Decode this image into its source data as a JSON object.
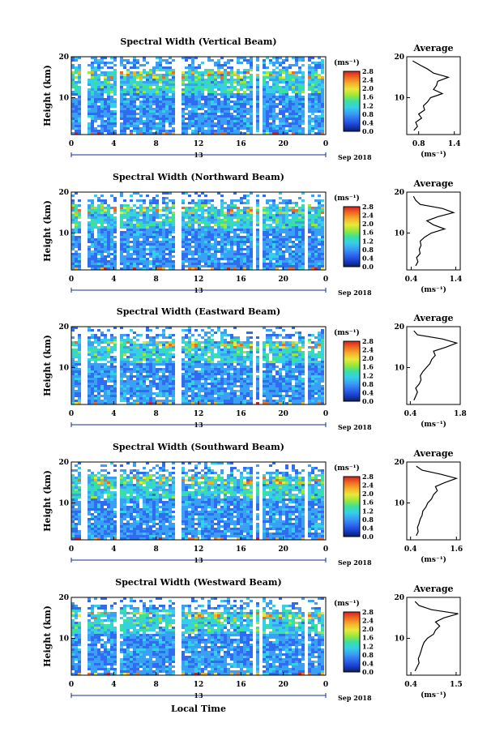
{
  "chart_data": {
    "type": "heatmap",
    "common": {
      "heatmap_ylabel": "Height (km)",
      "x_ticks": [
        "0",
        "4",
        "8",
        "12",
        "16",
        "20",
        "0"
      ],
      "x_tick_values": [
        0,
        4,
        8,
        12,
        16,
        20,
        24
      ],
      "xlim": [
        0,
        24
      ],
      "day_label": "13",
      "date_label": "Sep 2018",
      "y_ticks": [
        "20",
        "10"
      ],
      "y_tick_values": [
        20,
        10
      ],
      "ylim": [
        1,
        20
      ],
      "xlabel": "Local Time",
      "colorbar_unit": "(ms⁻¹)",
      "colorbar_ticks": [
        "2.8",
        "2.4",
        "2.0",
        "1.6",
        "1.2",
        "0.8",
        "0.4",
        "0.0"
      ],
      "colorbar_range": [
        0,
        2.8
      ],
      "colorbar_colors": [
        "#0a1f5e",
        "#1a3fd0",
        "#2f6cf0",
        "#3aa0f5",
        "#35d0e8",
        "#3ae0a0",
        "#9ae83a",
        "#e8e83a",
        "#f5b02a",
        "#f06a20",
        "#d82020"
      ],
      "profile_title": "Average",
      "profile_xlabel": "(ms⁻¹)",
      "profile_y_ticks": [
        "20",
        "10"
      ]
    },
    "panels": [
      {
        "title": "Spectral Width (Vertical Beam)",
        "gap_hours": [
          [
            1.0,
            1.5
          ],
          [
            4.2,
            4.6
          ],
          [
            9.7,
            10.4
          ],
          [
            17.2,
            17.4
          ],
          [
            17.9,
            18.2
          ],
          [
            22.2,
            22.5
          ]
        ],
        "profile_xlim": [
          0.6,
          1.5
        ],
        "profile_x_ticks": [
          "0.8",
          "1.4"
        ],
        "profile_x_tick_values": [
          0.8,
          1.4
        ],
        "profile": {
          "height": [
            2,
            3,
            4,
            5,
            6,
            7,
            8,
            9,
            10,
            11,
            12,
            13,
            14,
            15,
            16,
            17,
            18,
            19
          ],
          "value": [
            0.72,
            0.78,
            0.75,
            0.85,
            0.8,
            0.9,
            0.88,
            0.95,
            1.0,
            1.2,
            1.05,
            1.1,
            1.12,
            1.3,
            1.05,
            0.95,
            0.82,
            0.7
          ]
        }
      },
      {
        "title": "Spectral Width (Northward Beam)",
        "gap_hours": [
          [
            1.0,
            1.5
          ],
          [
            4.2,
            4.6
          ],
          [
            9.7,
            10.4
          ],
          [
            17.2,
            17.4
          ],
          [
            17.9,
            18.2
          ],
          [
            22.2,
            22.5
          ]
        ],
        "profile_xlim": [
          0.3,
          1.5
        ],
        "profile_x_ticks": [
          "0.4",
          "1.4"
        ],
        "profile_x_tick_values": [
          0.4,
          1.4
        ],
        "profile": {
          "height": [
            2,
            3,
            4,
            5,
            6,
            7,
            8,
            9,
            10,
            11,
            12,
            13,
            14,
            15,
            16,
            17,
            18,
            19
          ],
          "value": [
            0.5,
            0.55,
            0.52,
            0.6,
            0.58,
            0.62,
            0.6,
            0.7,
            0.85,
            1.15,
            0.9,
            0.75,
            1.0,
            1.35,
            1.1,
            0.6,
            0.5,
            0.45
          ]
        }
      },
      {
        "title": "Spectral Width (Eastward Beam)",
        "gap_hours": [
          [
            1.0,
            1.5
          ],
          [
            4.2,
            4.6
          ],
          [
            9.7,
            10.4
          ],
          [
            17.2,
            17.4
          ],
          [
            17.9,
            18.2
          ],
          [
            22.2,
            22.5
          ]
        ],
        "profile_xlim": [
          0.3,
          1.8
        ],
        "profile_x_ticks": [
          "0.4",
          "1.8"
        ],
        "profile_x_tick_values": [
          0.4,
          1.8
        ],
        "profile": {
          "height": [
            2,
            3,
            4,
            5,
            6,
            7,
            8,
            9,
            10,
            11,
            12,
            13,
            14,
            15,
            16,
            17,
            18,
            19
          ],
          "value": [
            0.5,
            0.55,
            0.6,
            0.55,
            0.65,
            0.7,
            0.68,
            0.75,
            0.85,
            0.95,
            1.0,
            1.1,
            1.05,
            1.4,
            1.7,
            1.3,
            0.6,
            0.5
          ]
        }
      },
      {
        "title": "Spectral Width (Southward Beam)",
        "gap_hours": [
          [
            1.0,
            1.5
          ],
          [
            4.2,
            4.6
          ],
          [
            9.7,
            10.4
          ],
          [
            17.2,
            17.4
          ],
          [
            17.9,
            18.2
          ],
          [
            22.2,
            22.5
          ]
        ],
        "profile_xlim": [
          0.3,
          1.7
        ],
        "profile_x_ticks": [
          "0.4",
          "1.6"
        ],
        "profile_x_tick_values": [
          0.4,
          1.6
        ],
        "profile": {
          "height": [
            2,
            3,
            4,
            5,
            6,
            7,
            8,
            9,
            10,
            11,
            12,
            13,
            14,
            15,
            16,
            17,
            18,
            19
          ],
          "value": [
            0.55,
            0.6,
            0.58,
            0.62,
            0.65,
            0.7,
            0.72,
            0.8,
            0.85,
            0.95,
            1.0,
            1.1,
            1.05,
            1.3,
            1.6,
            1.2,
            0.7,
            0.55
          ]
        }
      },
      {
        "title": "Spectral Width (Westward Beam)",
        "gap_hours": [
          [
            1.0,
            1.5
          ],
          [
            4.2,
            4.6
          ],
          [
            9.7,
            10.4
          ],
          [
            17.2,
            17.4
          ],
          [
            17.9,
            18.2
          ],
          [
            22.2,
            22.5
          ]
        ],
        "profile_xlim": [
          0.3,
          1.6
        ],
        "profile_x_ticks": [
          "0.4",
          "1.5"
        ],
        "profile_x_tick_values": [
          0.4,
          1.5
        ],
        "profile": {
          "height": [
            2,
            3,
            4,
            5,
            6,
            7,
            8,
            9,
            10,
            11,
            12,
            13,
            14,
            15,
            16,
            17,
            18,
            19
          ],
          "value": [
            0.5,
            0.55,
            0.6,
            0.58,
            0.62,
            0.65,
            0.68,
            0.72,
            0.8,
            0.95,
            1.0,
            1.1,
            1.0,
            1.2,
            1.55,
            0.9,
            0.6,
            0.5
          ]
        }
      }
    ]
  }
}
